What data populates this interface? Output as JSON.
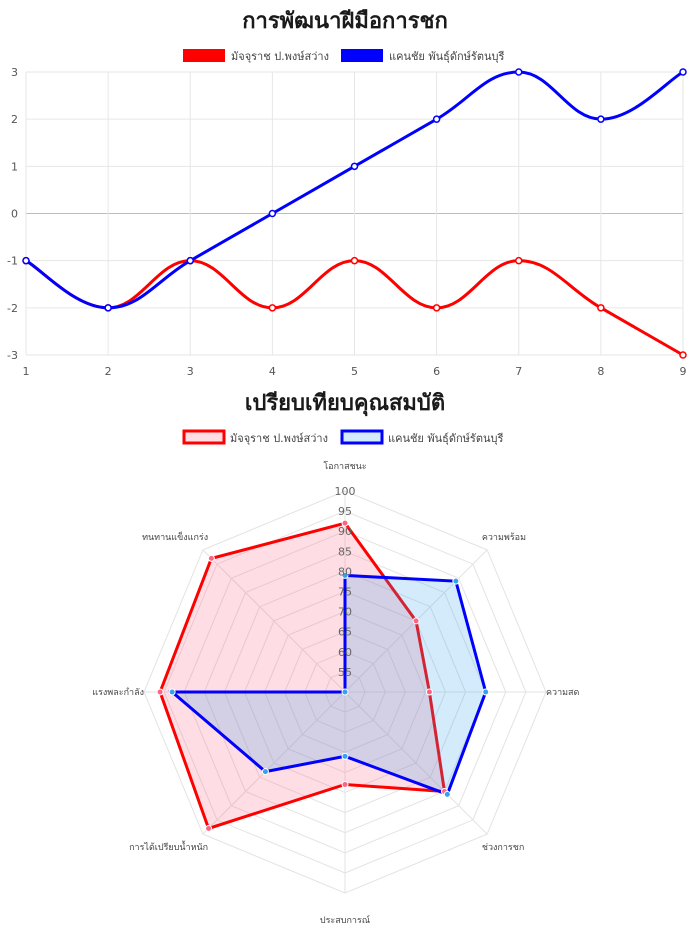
{
  "chart_data": [
    {
      "type": "line",
      "title": "การพัฒนาฝีมือการชก",
      "x": [
        1,
        2,
        3,
        4,
        5,
        6,
        7,
        8,
        9
      ],
      "ylim": [
        -3,
        3
      ],
      "yticks": [
        3,
        2,
        1,
        0,
        -1,
        -2,
        -3
      ],
      "grid": true,
      "legend": "top",
      "series": [
        {
          "name": "มัจจุราช ป.พงษ์สว่าง",
          "color": "#ff0000",
          "values": [
            -1,
            -2,
            -1,
            -2,
            -1,
            -2,
            -1,
            -2,
            -3
          ]
        },
        {
          "name": "แคนชัย พันธุ์ดักษ์รัตนบุรี",
          "color": "#0000ff",
          "values": [
            -1,
            -2,
            -1,
            0,
            1,
            2,
            3,
            2,
            3
          ]
        }
      ]
    },
    {
      "type": "radar",
      "title": "เปรียบเทียบคุณสมบัติ",
      "axes": [
        "โอกาสชนะ",
        "ความพร้อม",
        "ความสด",
        "ช่วงการชก",
        "ประสบการณ์",
        "การได้เปรียบน้ำหนัก",
        "แรงพละกำลัง",
        "ทนทานแข็งแกร่ง"
      ],
      "rlim": [
        50,
        100
      ],
      "rticks": [
        55,
        60,
        65,
        70,
        75,
        80,
        85,
        90,
        95,
        100
      ],
      "legend": "top",
      "series": [
        {
          "name": "มัจจุราช ป.พงษ์สว่าง",
          "color": "#ff0000",
          "fill": "rgba(255,99,132,0.22)",
          "values": [
            92,
            75,
            71,
            85,
            73,
            98,
            96,
            97
          ]
        },
        {
          "name": "แคนชัย พันธุ์ดักษ์รัตนบุรี",
          "color": "#0000ff",
          "fill": "rgba(54,162,235,0.22)",
          "values": [
            79,
            89,
            85,
            86,
            66,
            78,
            93,
            50
          ]
        }
      ]
    }
  ]
}
